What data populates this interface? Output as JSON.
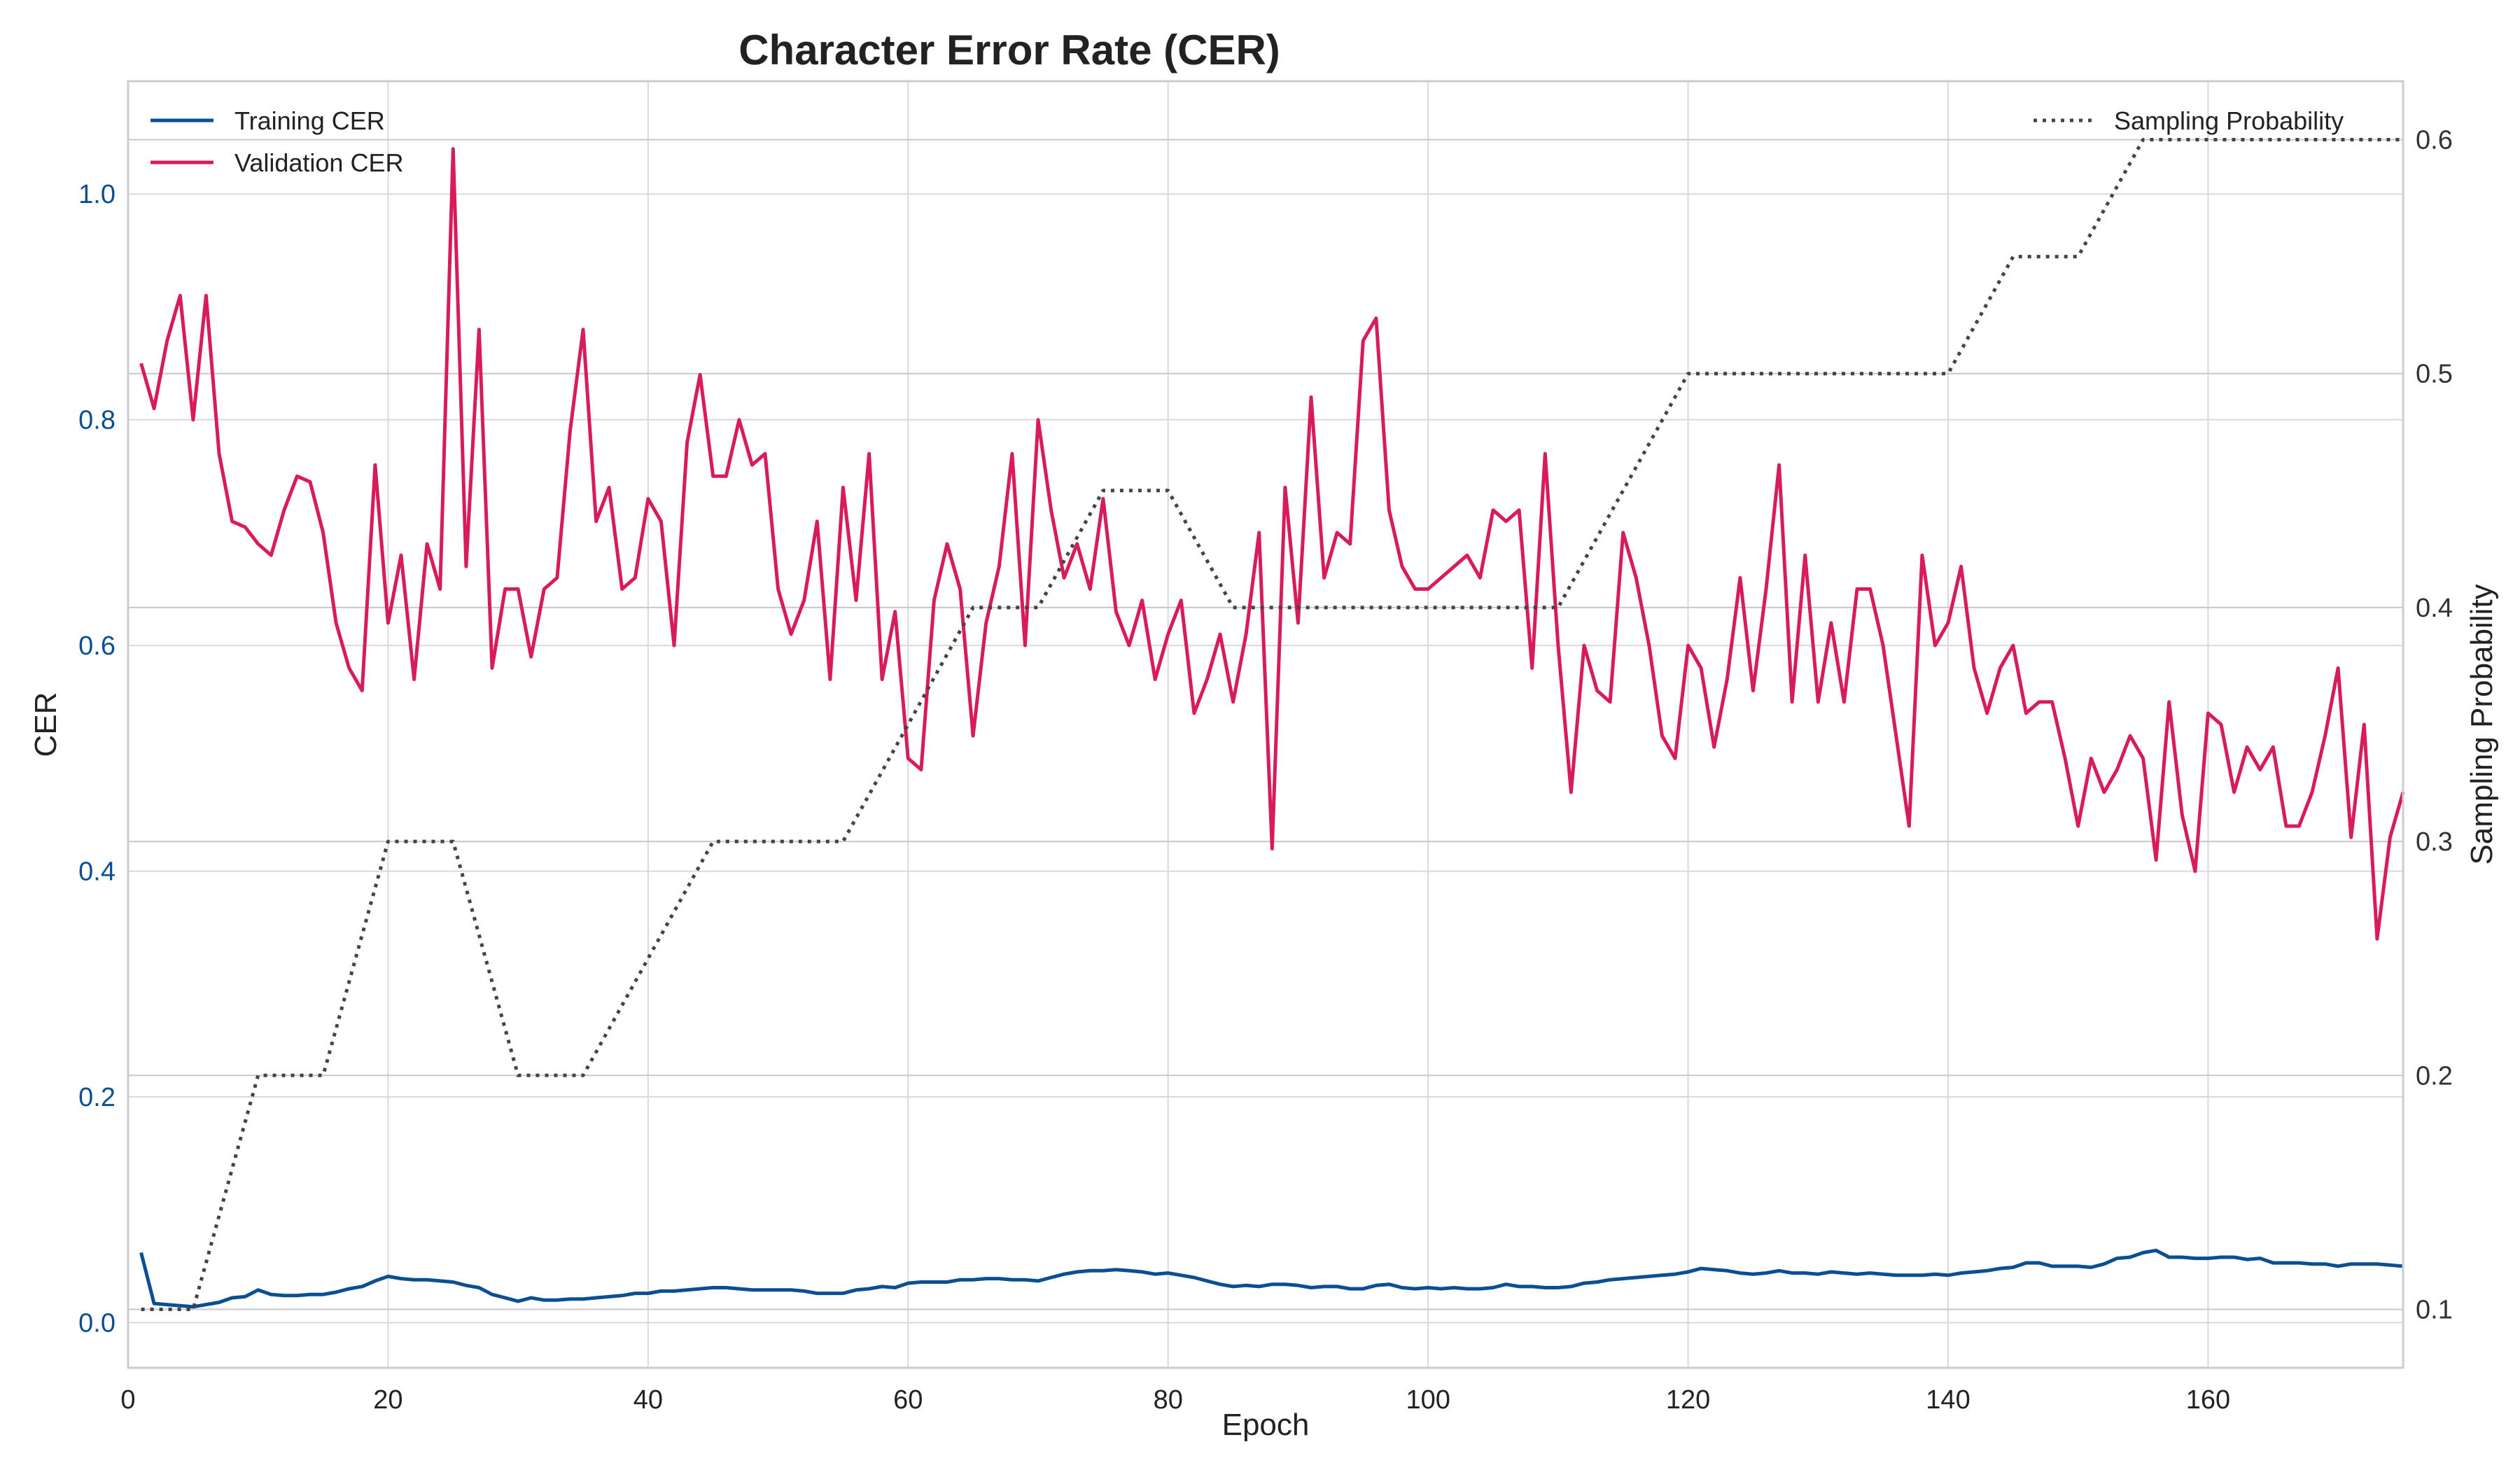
{
  "chart_data": {
    "type": "line",
    "title": "Character Error Rate (CER)",
    "xlabel": "Epoch",
    "ylabel": "CER",
    "y2label": "Sampling Probability",
    "xlim": [
      0,
      175
    ],
    "ylim": [
      -0.04,
      1.1
    ],
    "y2lim": [
      0.075,
      0.625
    ],
    "xticks": [
      0,
      20,
      40,
      60,
      80,
      100,
      120,
      140,
      160
    ],
    "yticks": [
      0.0,
      0.2,
      0.4,
      0.6,
      0.8,
      1.0
    ],
    "y2ticks": [
      0.1,
      0.2,
      0.3,
      0.4,
      0.5,
      0.6
    ],
    "grid": true,
    "legend_left": "top-left",
    "legend_right": "top-right",
    "colors": {
      "training": "#0b4f93",
      "validation": "#d81b5a",
      "sampling": "#444444",
      "left_tick": "#0b4f93"
    },
    "series": [
      {
        "name": "Training CER",
        "axis": "left",
        "style": "solid",
        "x": [
          1,
          2,
          3,
          4,
          5,
          6,
          7,
          8,
          9,
          10,
          11,
          12,
          13,
          14,
          15,
          16,
          17,
          18,
          19,
          20,
          21,
          22,
          23,
          24,
          25,
          26,
          27,
          28,
          29,
          30,
          31,
          32,
          33,
          34,
          35,
          36,
          37,
          38,
          39,
          40,
          41,
          42,
          43,
          44,
          45,
          46,
          47,
          48,
          49,
          50,
          51,
          52,
          53,
          54,
          55,
          56,
          57,
          58,
          59,
          60,
          61,
          62,
          63,
          64,
          65,
          66,
          67,
          68,
          69,
          70,
          71,
          72,
          73,
          74,
          75,
          76,
          77,
          78,
          79,
          80,
          81,
          82,
          83,
          84,
          85,
          86,
          87,
          88,
          89,
          90,
          91,
          92,
          93,
          94,
          95,
          96,
          97,
          98,
          99,
          100,
          101,
          102,
          103,
          104,
          105,
          106,
          107,
          108,
          109,
          110,
          111,
          112,
          113,
          114,
          115,
          116,
          117,
          118,
          119,
          120,
          121,
          122,
          123,
          124,
          125,
          126,
          127,
          128,
          129,
          130,
          131,
          132,
          133,
          134,
          135,
          136,
          137,
          138,
          139,
          140,
          141,
          142,
          143,
          144,
          145,
          146,
          147,
          148,
          149,
          150,
          151,
          152,
          153,
          154,
          155,
          156,
          157,
          158,
          159,
          160,
          161,
          162,
          163,
          164,
          165,
          166,
          167,
          168,
          169,
          170,
          171,
          172,
          173,
          174,
          175
        ],
        "values": [
          0.062,
          0.017,
          0.016,
          0.015,
          0.014,
          0.016,
          0.018,
          0.022,
          0.023,
          0.029,
          0.025,
          0.024,
          0.024,
          0.025,
          0.025,
          0.027,
          0.03,
          0.032,
          0.037,
          0.041,
          0.039,
          0.038,
          0.038,
          0.037,
          0.036,
          0.033,
          0.031,
          0.025,
          0.022,
          0.019,
          0.022,
          0.02,
          0.02,
          0.021,
          0.021,
          0.022,
          0.023,
          0.024,
          0.026,
          0.026,
          0.028,
          0.028,
          0.029,
          0.03,
          0.031,
          0.031,
          0.03,
          0.029,
          0.029,
          0.029,
          0.029,
          0.028,
          0.026,
          0.026,
          0.026,
          0.029,
          0.03,
          0.032,
          0.031,
          0.035,
          0.036,
          0.036,
          0.036,
          0.038,
          0.038,
          0.039,
          0.039,
          0.038,
          0.038,
          0.037,
          0.04,
          0.043,
          0.045,
          0.046,
          0.046,
          0.047,
          0.046,
          0.045,
          0.043,
          0.044,
          0.042,
          0.04,
          0.037,
          0.034,
          0.032,
          0.033,
          0.032,
          0.034,
          0.034,
          0.033,
          0.031,
          0.032,
          0.032,
          0.03,
          0.03,
          0.033,
          0.034,
          0.031,
          0.03,
          0.031,
          0.03,
          0.031,
          0.03,
          0.03,
          0.031,
          0.034,
          0.032,
          0.032,
          0.031,
          0.031,
          0.032,
          0.035,
          0.036,
          0.038,
          0.039,
          0.04,
          0.041,
          0.042,
          0.043,
          0.045,
          0.048,
          0.047,
          0.046,
          0.044,
          0.043,
          0.044,
          0.046,
          0.044,
          0.044,
          0.043,
          0.045,
          0.044,
          0.043,
          0.044,
          0.043,
          0.042,
          0.042,
          0.042,
          0.043,
          0.042,
          0.044,
          0.045,
          0.046,
          0.048,
          0.049,
          0.053,
          0.053,
          0.05,
          0.05,
          0.05,
          0.049,
          0.052,
          0.057,
          0.058,
          0.062,
          0.064,
          0.058,
          0.058,
          0.057,
          0.057,
          0.058,
          0.058,
          0.056,
          0.057,
          0.053,
          0.053,
          0.053,
          0.052,
          0.052,
          0.05,
          0.052,
          0.052,
          0.052,
          0.051,
          0.05
        ]
      },
      {
        "name": "Validation CER",
        "axis": "left",
        "style": "solid",
        "x": [
          1,
          2,
          3,
          4,
          5,
          6,
          7,
          8,
          9,
          10,
          11,
          12,
          13,
          14,
          15,
          16,
          17,
          18,
          19,
          20,
          21,
          22,
          23,
          24,
          25,
          26,
          27,
          28,
          29,
          30,
          31,
          32,
          33,
          34,
          35,
          36,
          37,
          38,
          39,
          40,
          41,
          42,
          43,
          44,
          45,
          46,
          47,
          48,
          49,
          50,
          51,
          52,
          53,
          54,
          55,
          56,
          57,
          58,
          59,
          60,
          61,
          62,
          63,
          64,
          65,
          66,
          67,
          68,
          69,
          70,
          71,
          72,
          73,
          74,
          75,
          76,
          77,
          78,
          79,
          80,
          81,
          82,
          83,
          84,
          85,
          86,
          87,
          88,
          89,
          90,
          91,
          92,
          93,
          94,
          95,
          96,
          97,
          98,
          99,
          100,
          101,
          102,
          103,
          104,
          105,
          106,
          107,
          108,
          109,
          110,
          111,
          112,
          113,
          114,
          115,
          116,
          117,
          118,
          119,
          120,
          121,
          122,
          123,
          124,
          125,
          126,
          127,
          128,
          129,
          130,
          131,
          132,
          133,
          134,
          135,
          136,
          137,
          138,
          139,
          140,
          141,
          142,
          143,
          144,
          145,
          146,
          147,
          148,
          149,
          150,
          151,
          152,
          153,
          154,
          155,
          156,
          157,
          158,
          159,
          160,
          161,
          162,
          163,
          164,
          165,
          166,
          167,
          168,
          169,
          170,
          171,
          172,
          173,
          174,
          175
        ],
        "values": [
          0.85,
          0.81,
          0.87,
          0.91,
          0.8,
          0.91,
          0.77,
          0.71,
          0.705,
          0.69,
          0.68,
          0.72,
          0.75,
          0.745,
          0.7,
          0.62,
          0.58,
          0.56,
          0.76,
          0.62,
          0.68,
          0.57,
          0.69,
          0.65,
          1.04,
          0.67,
          0.88,
          0.58,
          0.65,
          0.65,
          0.59,
          0.65,
          0.66,
          0.79,
          0.88,
          0.71,
          0.74,
          0.65,
          0.66,
          0.73,
          0.71,
          0.6,
          0.78,
          0.84,
          0.75,
          0.75,
          0.8,
          0.76,
          0.77,
          0.65,
          0.61,
          0.64,
          0.71,
          0.57,
          0.74,
          0.64,
          0.77,
          0.57,
          0.63,
          0.5,
          0.49,
          0.64,
          0.69,
          0.65,
          0.52,
          0.62,
          0.67,
          0.77,
          0.6,
          0.8,
          0.72,
          0.66,
          0.69,
          0.65,
          0.73,
          0.63,
          0.6,
          0.64,
          0.57,
          0.61,
          0.64,
          0.54,
          0.57,
          0.61,
          0.55,
          0.61,
          0.7,
          0.42,
          0.74,
          0.62,
          0.82,
          0.66,
          0.7,
          0.69,
          0.87,
          0.89,
          0.72,
          0.67,
          0.65,
          0.65,
          0.66,
          0.67,
          0.68,
          0.66,
          0.72,
          0.71,
          0.72,
          0.58,
          0.77,
          0.6,
          0.47,
          0.6,
          0.56,
          0.55,
          0.7,
          0.66,
          0.6,
          0.52,
          0.5,
          0.6,
          0.58,
          0.51,
          0.57,
          0.66,
          0.56,
          0.65,
          0.76,
          0.55,
          0.68,
          0.55,
          0.62,
          0.55,
          0.65,
          0.65,
          0.6,
          0.52,
          0.44,
          0.68,
          0.6,
          0.62,
          0.67,
          0.58,
          0.54,
          0.58,
          0.6,
          0.54,
          0.55,
          0.55,
          0.5,
          0.44,
          0.5,
          0.47,
          0.49,
          0.52,
          0.5,
          0.41,
          0.55,
          0.45,
          0.4,
          0.54,
          0.53,
          0.47,
          0.51,
          0.49,
          0.51,
          0.44,
          0.44,
          0.47,
          0.52,
          0.58,
          0.43,
          0.53,
          0.34,
          0.43,
          0.47
        ]
      },
      {
        "name": "Sampling Probability",
        "axis": "right",
        "style": "dotted",
        "x": [
          1,
          5,
          10,
          15,
          20,
          25,
          30,
          35,
          40,
          45,
          50,
          55,
          60,
          65,
          70,
          75,
          80,
          85,
          90,
          95,
          100,
          105,
          110,
          115,
          120,
          125,
          130,
          135,
          140,
          145,
          150,
          155,
          160,
          165,
          170,
          175
        ],
        "values": [
          0.1,
          0.1,
          0.2,
          0.2,
          0.3,
          0.3,
          0.2,
          0.2,
          0.25,
          0.3,
          0.3,
          0.3,
          0.35,
          0.4,
          0.4,
          0.45,
          0.45,
          0.4,
          0.4,
          0.4,
          0.4,
          0.4,
          0.4,
          0.45,
          0.5,
          0.5,
          0.5,
          0.5,
          0.5,
          0.55,
          0.55,
          0.6,
          0.6,
          0.6,
          0.6,
          0.6
        ]
      }
    ]
  }
}
